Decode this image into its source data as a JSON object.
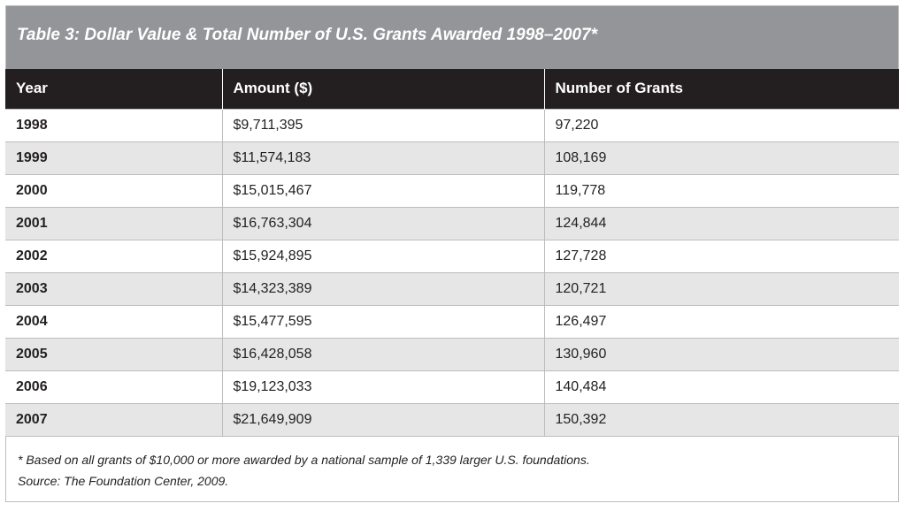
{
  "chart_data": {
    "type": "table",
    "title": "Table 3: Dollar Value & Total Number of U.S. Grants Awarded 1998–2007*",
    "columns": [
      "Year",
      "Amount ($)",
      "Number of Grants"
    ],
    "rows": [
      {
        "year": "1998",
        "amount": "$9,711,395",
        "grants": "97,220"
      },
      {
        "year": "1999",
        "amount": "$11,574,183",
        "grants": "108,169"
      },
      {
        "year": "2000",
        "amount": "$15,015,467",
        "grants": "119,778"
      },
      {
        "year": "2001",
        "amount": "$16,763,304",
        "grants": "124,844"
      },
      {
        "year": "2002",
        "amount": "$15,924,895",
        "grants": "127,728"
      },
      {
        "year": "2003",
        "amount": "$14,323,389",
        "grants": "120,721"
      },
      {
        "year": "2004",
        "amount": "$15,477,595",
        "grants": "126,497"
      },
      {
        "year": "2005",
        "amount": "$16,428,058",
        "grants": "130,960"
      },
      {
        "year": "2006",
        "amount": "$19,123,033",
        "grants": "140,484"
      },
      {
        "year": "2007",
        "amount": "$21,649,909",
        "grants": "150,392"
      }
    ],
    "footnote": "* Based on all grants of $10,000 or more awarded by a national sample of 1,339 larger U.S. foundations.",
    "source": "Source: The Foundation Center, 2009."
  },
  "colors": {
    "title_bar": "#939598",
    "header": "#231f20",
    "row_alt": "#e6e6e7"
  }
}
